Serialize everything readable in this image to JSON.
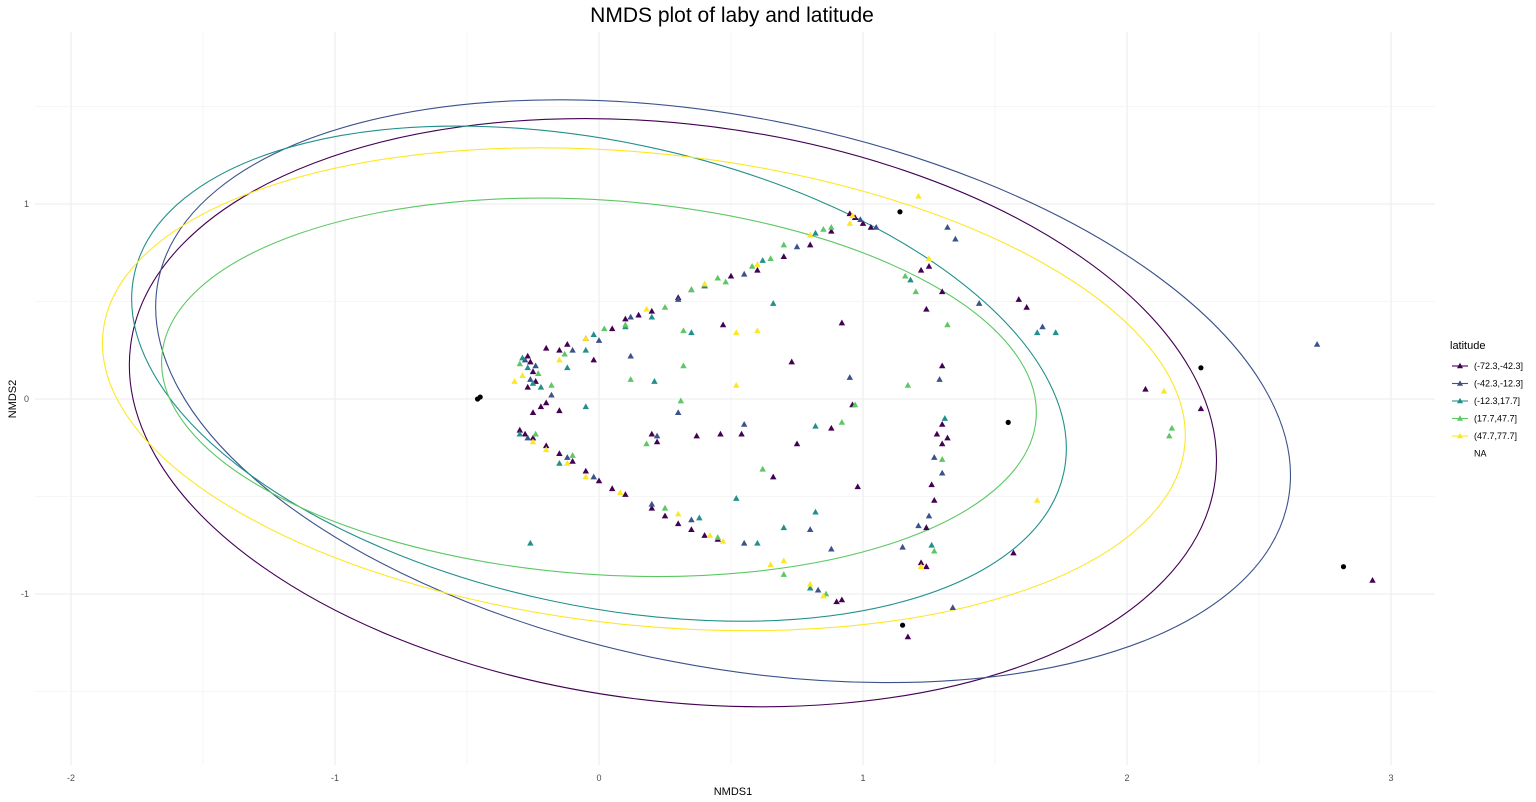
{
  "chart_data": {
    "type": "scatter",
    "title": "NMDS plot of laby and latitude",
    "xlabel": "NMDS1",
    "ylabel": "NMDS2",
    "xlim": [
      -2.15,
      3.2
    ],
    "ylim": [
      -1.83,
      1.83
    ],
    "x_ticks": [
      -2,
      -1,
      0,
      1,
      2,
      3
    ],
    "y_ticks": [
      -1,
      0,
      1
    ],
    "x_tick_labels": [
      "-2",
      "-1",
      "0",
      "1",
      "2",
      "3"
    ],
    "y_tick_labels": [
      "-1",
      "0",
      "1"
    ],
    "grid": true,
    "legend": {
      "title": "latitude",
      "position": "right",
      "entries": [
        {
          "label": "(-72.3,-42.3]",
          "color": "#440154"
        },
        {
          "label": "(-42.3,-12.3]",
          "color": "#3b528b"
        },
        {
          "label": "(-12.3,17.7]",
          "color": "#21908c"
        },
        {
          "label": "(17.7,47.7]",
          "color": "#5dc863"
        },
        {
          "label": "(47.7,77.7]",
          "color": "#fde725"
        },
        {
          "label": "NA",
          "color": "#000000"
        }
      ]
    },
    "ellipses": [
      {
        "series": "(-72.3,-42.3]",
        "center": [
          0.28,
          -0.07
        ],
        "radii": [
          2.07,
          1.48
        ],
        "angle_deg": -7
      },
      {
        "series": "(-42.3,-12.3]",
        "center": [
          0.47,
          0.04
        ],
        "radii": [
          2.18,
          1.41
        ],
        "angle_deg": -11
      },
      {
        "series": "(-12.3,17.7]",
        "center": [
          0.0,
          0.13
        ],
        "radii": [
          1.8,
          1.19
        ],
        "angle_deg": -12
      },
      {
        "series": "(17.7,47.7]",
        "center": [
          0.0,
          0.06
        ],
        "radii": [
          1.66,
          0.96
        ],
        "angle_deg": -4
      },
      {
        "series": "(47.7,77.7]",
        "center": [
          0.17,
          0.05
        ],
        "radii": [
          2.06,
          1.21
        ],
        "angle_deg": -6
      }
    ],
    "series": [
      {
        "name": "(-72.3,-42.3]",
        "color": "#440154",
        "marker": "triangle",
        "points": [
          [
            -0.27,
            0.22
          ],
          [
            -0.26,
            0.19
          ],
          [
            -0.25,
            0.14
          ],
          [
            -0.24,
            0.09
          ],
          [
            -0.27,
            0.06
          ],
          [
            -0.2,
            0.26
          ],
          [
            -0.15,
            0.25
          ],
          [
            -0.12,
            0.28
          ],
          [
            -0.05,
            0.31
          ],
          [
            0.05,
            0.36
          ],
          [
            0.1,
            0.41
          ],
          [
            0.15,
            0.43
          ],
          [
            0.2,
            0.45
          ],
          [
            0.3,
            0.52
          ],
          [
            0.35,
            0.56
          ],
          [
            0.4,
            0.58
          ],
          [
            0.5,
            0.63
          ],
          [
            0.6,
            0.66
          ],
          [
            0.7,
            0.73
          ],
          [
            0.8,
            0.79
          ],
          [
            0.88,
            0.86
          ],
          [
            0.95,
            0.95
          ],
          [
            0.97,
            0.93
          ],
          [
            1.0,
            0.9
          ],
          [
            1.03,
            0.88
          ],
          [
            -0.3,
            -0.16
          ],
          [
            -0.28,
            -0.18
          ],
          [
            -0.25,
            -0.2
          ],
          [
            -0.2,
            -0.24
          ],
          [
            -0.15,
            -0.28
          ],
          [
            -0.1,
            -0.32
          ],
          [
            -0.05,
            -0.37
          ],
          [
            0.0,
            -0.42
          ],
          [
            0.05,
            -0.46
          ],
          [
            0.1,
            -0.49
          ],
          [
            0.2,
            -0.56
          ],
          [
            0.25,
            -0.6
          ],
          [
            0.3,
            -0.64
          ],
          [
            0.35,
            -0.67
          ],
          [
            0.4,
            -0.7
          ],
          [
            0.45,
            -0.72
          ],
          [
            0.92,
            -1.03
          ],
          [
            0.9,
            -1.04
          ],
          [
            -0.25,
            -0.07
          ],
          [
            -0.22,
            -0.04
          ],
          [
            -0.15,
            -0.06
          ],
          [
            -0.2,
            -0.02
          ],
          [
            0.47,
            0.38
          ],
          [
            0.73,
            0.19
          ],
          [
            0.92,
            0.39
          ],
          [
            0.46,
            -0.18
          ],
          [
            0.54,
            -0.18
          ],
          [
            0.75,
            -0.23
          ],
          [
            0.88,
            -0.15
          ],
          [
            0.96,
            -0.03
          ],
          [
            0.2,
            -0.18
          ],
          [
            0.22,
            -0.22
          ],
          [
            0.37,
            -0.19
          ],
          [
            1.22,
            0.66
          ],
          [
            1.25,
            0.68
          ],
          [
            1.3,
            0.55
          ],
          [
            1.24,
            0.46
          ],
          [
            1.3,
            0.17
          ],
          [
            1.3,
            -0.13
          ],
          [
            1.28,
            -0.18
          ],
          [
            1.32,
            -0.2
          ],
          [
            1.3,
            -0.23
          ],
          [
            1.26,
            -0.44
          ],
          [
            1.27,
            -0.52
          ],
          [
            1.24,
            -0.66
          ],
          [
            1.22,
            -0.84
          ],
          [
            1.24,
            -0.86
          ],
          [
            1.17,
            -1.22
          ],
          [
            1.59,
            0.51
          ],
          [
            1.62,
            0.47
          ],
          [
            2.07,
            0.05
          ],
          [
            2.28,
            -0.05
          ],
          [
            1.57,
            -0.79
          ],
          [
            2.93,
            -0.93
          ],
          [
            0.66,
            -0.4
          ],
          [
            0.98,
            -0.45
          ],
          [
            -0.02,
            0.2
          ]
        ]
      },
      {
        "name": "(-42.3,-12.3]",
        "color": "#3b528b",
        "marker": "triangle",
        "points": [
          [
            -0.28,
            0.2
          ],
          [
            -0.24,
            0.17
          ],
          [
            -0.26,
            0.1
          ],
          [
            -0.1,
            0.25
          ],
          [
            0.0,
            0.3
          ],
          [
            0.12,
            0.42
          ],
          [
            0.3,
            0.51
          ],
          [
            0.55,
            0.64
          ],
          [
            0.75,
            0.78
          ],
          [
            0.99,
            0.92
          ],
          [
            -0.27,
            -0.2
          ],
          [
            -0.12,
            -0.3
          ],
          [
            -0.02,
            -0.4
          ],
          [
            0.2,
            -0.54
          ],
          [
            0.35,
            -0.62
          ],
          [
            0.55,
            -0.74
          ],
          [
            0.83,
            -0.98
          ],
          [
            0.12,
            0.22
          ],
          [
            0.3,
            -0.07
          ],
          [
            0.22,
            -0.19
          ],
          [
            0.55,
            -0.13
          ],
          [
            1.05,
            0.88
          ],
          [
            1.32,
            0.88
          ],
          [
            1.44,
            0.49
          ],
          [
            1.68,
            0.37
          ],
          [
            1.29,
            0.1
          ],
          [
            1.27,
            -0.3
          ],
          [
            1.3,
            -0.38
          ],
          [
            1.25,
            -0.6
          ],
          [
            1.21,
            -0.65
          ],
          [
            0.88,
            -0.77
          ],
          [
            0.8,
            -0.67
          ],
          [
            1.34,
            -1.07
          ],
          [
            2.72,
            0.28
          ],
          [
            -0.18,
            0.02
          ],
          [
            1.15,
            -0.76
          ],
          [
            0.95,
            0.11
          ],
          [
            1.35,
            0.82
          ]
        ]
      },
      {
        "name": "(-12.3,17.7]",
        "color": "#21908c",
        "marker": "triangle",
        "points": [
          [
            -0.29,
            0.21
          ],
          [
            -0.27,
            0.16
          ],
          [
            -0.25,
            0.08
          ],
          [
            -0.22,
            0.06
          ],
          [
            -0.05,
            0.25
          ],
          [
            -0.02,
            0.33
          ],
          [
            0.1,
            0.37
          ],
          [
            0.2,
            0.42
          ],
          [
            0.4,
            0.58
          ],
          [
            0.62,
            0.71
          ],
          [
            0.82,
            0.85
          ],
          [
            -0.3,
            -0.18
          ],
          [
            -0.15,
            -0.33
          ],
          [
            0.38,
            -0.61
          ],
          [
            0.6,
            -0.74
          ],
          [
            0.8,
            -0.97
          ],
          [
            -0.26,
            -0.74
          ],
          [
            0.52,
            -0.51
          ],
          [
            0.7,
            -0.66
          ],
          [
            0.82,
            -0.58
          ],
          [
            0.66,
            0.49
          ],
          [
            0.35,
            0.34
          ],
          [
            1.18,
            0.61
          ],
          [
            1.73,
            0.34
          ],
          [
            1.66,
            0.34
          ],
          [
            1.31,
            -0.1
          ],
          [
            1.26,
            -0.75
          ],
          [
            0.21,
            0.09
          ],
          [
            -0.12,
            0.16
          ],
          [
            -0.05,
            -0.04
          ],
          [
            0.82,
            -0.14
          ]
        ]
      },
      {
        "name": "(17.7,47.7]",
        "color": "#5dc863",
        "marker": "triangle",
        "points": [
          [
            -0.3,
            0.18
          ],
          [
            -0.23,
            0.13
          ],
          [
            -0.13,
            0.23
          ],
          [
            0.02,
            0.36
          ],
          [
            0.1,
            0.38
          ],
          [
            0.25,
            0.47
          ],
          [
            0.35,
            0.56
          ],
          [
            0.45,
            0.62
          ],
          [
            0.58,
            0.68
          ],
          [
            0.7,
            0.79
          ],
          [
            0.85,
            0.87
          ],
          [
            0.88,
            0.88
          ],
          [
            -0.24,
            -0.18
          ],
          [
            -0.1,
            -0.29
          ],
          [
            0.25,
            -0.56
          ],
          [
            0.45,
            -0.71
          ],
          [
            0.7,
            -0.9
          ],
          [
            0.86,
            -1.0
          ],
          [
            0.32,
            0.35
          ],
          [
            0.32,
            0.17
          ],
          [
            0.62,
            -0.36
          ],
          [
            0.92,
            -0.12
          ],
          [
            0.97,
            -0.03
          ],
          [
            0.18,
            -0.23
          ],
          [
            0.12,
            0.1
          ],
          [
            0.31,
            -0.01
          ],
          [
            1.2,
            0.55
          ],
          [
            1.16,
            0.63
          ],
          [
            1.32,
            0.38
          ],
          [
            1.17,
            0.07
          ],
          [
            1.3,
            -0.31
          ],
          [
            1.27,
            -0.78
          ],
          [
            2.17,
            -0.15
          ],
          [
            2.16,
            -0.19
          ],
          [
            0.48,
            0.6
          ],
          [
            0.65,
            0.72
          ],
          [
            -0.18,
            0.07
          ]
        ]
      },
      {
        "name": "(47.7,77.7]",
        "color": "#fde725",
        "marker": "triangle",
        "points": [
          [
            -0.32,
            0.09
          ],
          [
            -0.29,
            0.12
          ],
          [
            -0.15,
            0.2
          ],
          [
            -0.05,
            0.31
          ],
          [
            0.18,
            0.46
          ],
          [
            0.4,
            0.59
          ],
          [
            0.6,
            0.69
          ],
          [
            0.8,
            0.84
          ],
          [
            0.96,
            0.94
          ],
          [
            0.95,
            0.9
          ],
          [
            -0.25,
            -0.22
          ],
          [
            -0.2,
            -0.26
          ],
          [
            -0.12,
            -0.33
          ],
          [
            0.08,
            -0.48
          ],
          [
            0.3,
            -0.59
          ],
          [
            0.47,
            -0.73
          ],
          [
            0.65,
            -0.85
          ],
          [
            0.8,
            -0.95
          ],
          [
            0.85,
            -1.01
          ],
          [
            0.52,
            0.34
          ],
          [
            0.52,
            0.07
          ],
          [
            1.21,
            1.04
          ],
          [
            1.25,
            0.72
          ],
          [
            1.22,
            -0.86
          ],
          [
            1.66,
            -0.52
          ],
          [
            2.14,
            0.04
          ],
          [
            0.7,
            -0.83
          ],
          [
            0.42,
            -0.7
          ],
          [
            0.6,
            0.35
          ],
          [
            -0.05,
            -0.4
          ]
        ]
      },
      {
        "name": "NA",
        "color": "#000000",
        "marker": "circle",
        "points": [
          [
            -0.46,
            0.0
          ],
          [
            -0.45,
            0.01
          ],
          [
            1.14,
            0.96
          ],
          [
            2.28,
            0.16
          ],
          [
            1.55,
            -0.12
          ],
          [
            1.15,
            -1.16
          ],
          [
            2.82,
            -0.86
          ]
        ]
      }
    ]
  }
}
